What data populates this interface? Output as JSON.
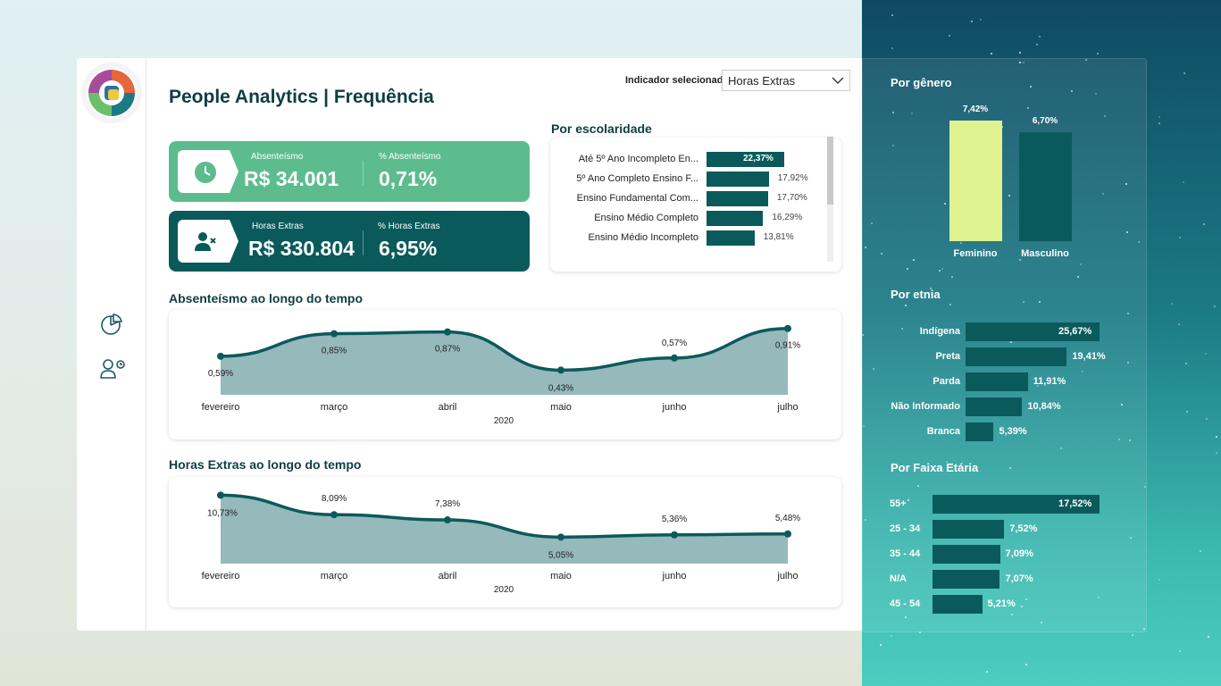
{
  "header": {
    "title": "People Analytics | Frequência"
  },
  "indicator": {
    "label": "Indicador selecionado",
    "value": "Horas Extras"
  },
  "kpis": {
    "absent_label": "Absenteísmo",
    "absent_value": "R$ 34.001",
    "absent_pct_label": "% Absenteísmo",
    "absent_pct_value": "0,71%",
    "overtime_label": "Horas Extras",
    "overtime_value": "R$ 330.804",
    "overtime_pct_label": "% Horas Extras",
    "overtime_pct_value": "6,95%"
  },
  "escolaridade": {
    "title": "Por escolaridade",
    "rows": [
      {
        "label": "Até 5º Ano Incompleto En...",
        "value": 22.37,
        "pct": "22,37%"
      },
      {
        "label": "5º Ano Completo Ensino F...",
        "value": 17.92,
        "pct": "17,92%"
      },
      {
        "label": "Ensino Fundamental Com...",
        "value": 17.7,
        "pct": "17,70%"
      },
      {
        "label": "Ensino Médio Completo",
        "value": 16.29,
        "pct": "16,29%"
      },
      {
        "label": "Ensino Médio Incompleto",
        "value": 13.81,
        "pct": "13,81%"
      }
    ]
  },
  "chart_data": [
    {
      "type": "area",
      "title": "Absenteísmo ao longo do tempo",
      "categories": [
        "fevereiro",
        "março",
        "abril",
        "maio",
        "junho",
        "julho"
      ],
      "values": [
        0.59,
        0.85,
        0.87,
        0.43,
        0.57,
        0.91
      ],
      "labels": [
        "0,59%",
        "0,85%",
        "0,87%",
        "0,43%",
        "0,57%",
        "0,91%"
      ],
      "xlabel": "2020"
    },
    {
      "type": "area",
      "title": "Horas Extras ao longo do tempo",
      "categories": [
        "fevereiro",
        "março",
        "abril",
        "maio",
        "junho",
        "julho"
      ],
      "values": [
        10.73,
        8.09,
        7.38,
        5.05,
        5.36,
        5.48
      ],
      "labels": [
        "10,73%",
        "8,09%",
        "7,38%",
        "5,05%",
        "5,36%",
        "5,48%"
      ],
      "xlabel": "2020"
    },
    {
      "type": "bar",
      "title": "Por gênero",
      "categories": [
        "Feminino",
        "Masculino"
      ],
      "values": [
        7.42,
        6.7
      ],
      "labels": [
        "7,42%",
        "6,70%"
      ],
      "colors": [
        "#dff28f",
        "#0b5a5b"
      ]
    }
  ],
  "etnia": {
    "title": "Por etnia",
    "rows": [
      {
        "label": "Indígena",
        "value": 25.67,
        "pct": "25,67%"
      },
      {
        "label": "Preta",
        "value": 19.41,
        "pct": "19,41%"
      },
      {
        "label": "Parda",
        "value": 11.91,
        "pct": "11,91%"
      },
      {
        "label": "Não Informado",
        "value": 10.84,
        "pct": "10,84%"
      },
      {
        "label": "Branca",
        "value": 5.39,
        "pct": "5,39%"
      }
    ]
  },
  "faixa": {
    "title": "Por Faixa Etária",
    "rows": [
      {
        "label": "55+",
        "value": 17.52,
        "pct": "17,52%"
      },
      {
        "label": "25 - 34",
        "value": 7.52,
        "pct": "7,52%"
      },
      {
        "label": "35 - 44",
        "value": 7.09,
        "pct": "7,09%"
      },
      {
        "label": "N/A",
        "value": 7.07,
        "pct": "7,07%"
      },
      {
        "label": "45 - 54",
        "value": 5.21,
        "pct": "5,21%"
      }
    ]
  },
  "colors": {
    "dark": "#0b5a5b",
    "green": "#5dbc8d",
    "area": "#96b9bc",
    "line": "#0b5a5b",
    "accent": "#dff28f"
  }
}
